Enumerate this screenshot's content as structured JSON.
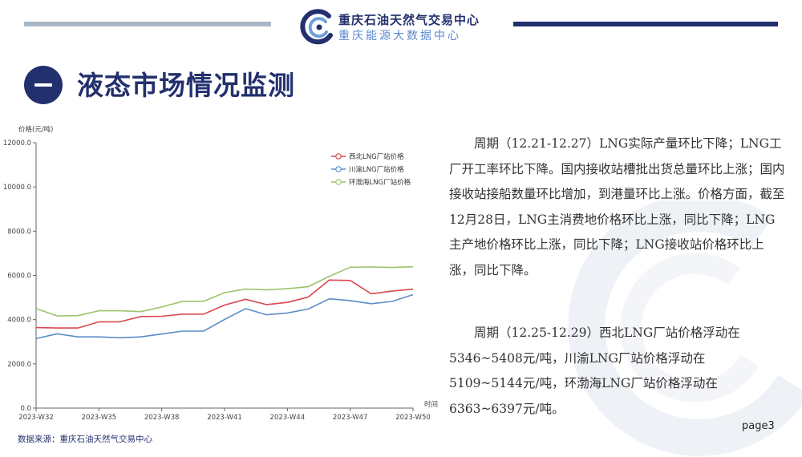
{
  "header": {
    "brand_name": "重庆石油天然气交易中心",
    "brand_sub": "重庆能源大数据中心",
    "colors": {
      "navy": "#23306e",
      "grey_bar": "#a9b8c4",
      "light_blue": "#5b8ad0"
    }
  },
  "section": {
    "title": "液态市场情况监测",
    "badge_icon": "dash-icon"
  },
  "chart_data": {
    "type": "line",
    "ylabel": "价格(元/吨)",
    "xlabel": "时间",
    "ylim": [
      0,
      12000
    ],
    "y_ticks": [
      "12000.0",
      "10000.0",
      "8000.0",
      "6000.0",
      "4000.0",
      "2000.0",
      "0.0"
    ],
    "x_ticks": [
      "2023-W32",
      "2023-W35",
      "2023-W38",
      "2023-W41",
      "2023-W44",
      "2023-W47",
      "2023-W50"
    ],
    "x": [
      "2023-W32",
      "2023-W33",
      "2023-W34",
      "2023-W35",
      "2023-W36",
      "2023-W37",
      "2023-W38",
      "2023-W39",
      "2023-W40",
      "2023-W41",
      "2023-W42",
      "2023-W43",
      "2023-W44",
      "2023-W45",
      "2023-W46",
      "2023-W47",
      "2023-W48",
      "2023-W49",
      "2023-W50"
    ],
    "legend_position": "top-right",
    "grid": false,
    "series": [
      {
        "name": "西北LNG厂站价格",
        "color": "#d9484d",
        "values": [
          3640,
          3620,
          3620,
          3900,
          3900,
          4140,
          4150,
          4250,
          4250,
          4660,
          4920,
          4680,
          4780,
          5020,
          5790,
          5770,
          5170,
          5290,
          5380
        ]
      },
      {
        "name": "川渝LNG厂站价格",
        "color": "#5b8dc8",
        "values": [
          3140,
          3360,
          3220,
          3220,
          3180,
          3220,
          3350,
          3480,
          3480,
          4010,
          4500,
          4220,
          4300,
          4480,
          4940,
          4860,
          4720,
          4820,
          5130
        ]
      },
      {
        "name": "环渤海LNG厂站价格",
        "color": "#9cc46a",
        "values": [
          4500,
          4170,
          4180,
          4400,
          4400,
          4360,
          4570,
          4830,
          4830,
          5220,
          5380,
          5350,
          5400,
          5490,
          5960,
          6370,
          6380,
          6360,
          6390
        ]
      }
    ]
  },
  "text": {
    "para1": "　　周期（12.21-12.27）LNG实际产量环比下降；LNG工厂开工率环比下降。国内接收站槽批出货总量环比上涨；国内接收站接船数量环比增加，到港量环比上涨。价格方面，截至12月28日，LNG主消费地价格环比上涨，同比下降；LNG主产地价格环比上涨，同比下降；LNG接收站价格环比上涨，同比下降。",
    "para2": "　　周期（12.25-12.29）西北LNG厂站价格浮动在\n5346~5408元/吨，川渝LNG厂站价格浮动在\n5109~5144元/吨，环渤海LNG厂站价格浮动在\n6363~6397元/吨。"
  },
  "footer": {
    "source": "数据来源：重庆石油天然气交易中心",
    "page": "page3"
  }
}
